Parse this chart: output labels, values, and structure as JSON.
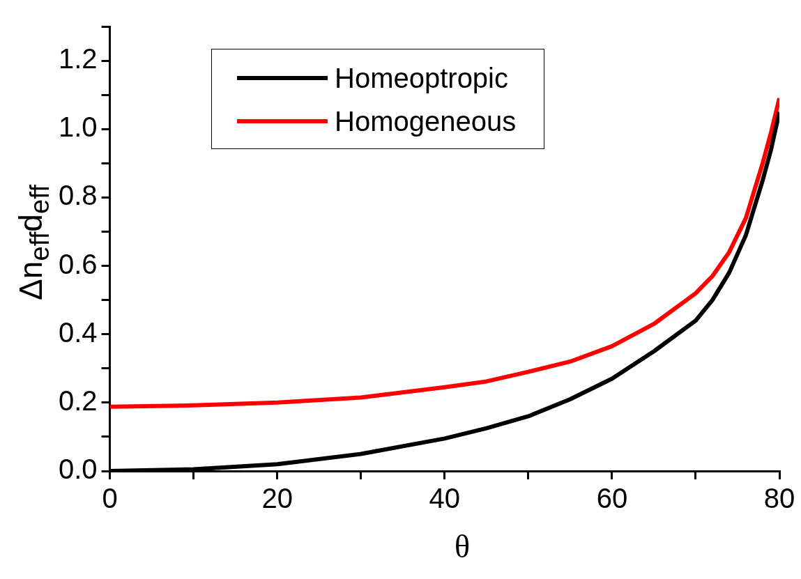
{
  "chart_data": {
    "type": "line",
    "xlabel": "θ",
    "ylabel": "Δn$_{eff}$d$_{eff}$",
    "x": [
      0,
      10,
      20,
      30,
      40,
      45,
      50,
      55,
      60,
      65,
      70,
      72,
      74,
      76,
      78,
      79,
      80
    ],
    "series": [
      {
        "name": "Homeoptropic",
        "color": "#000000",
        "values": [
          0,
          0.005,
          0.02,
          0.05,
          0.095,
          0.125,
          0.16,
          0.21,
          0.27,
          0.35,
          0.44,
          0.5,
          0.58,
          0.69,
          0.85,
          0.94,
          1.05
        ]
      },
      {
        "name": "Homogeneous",
        "color": "#ff0000",
        "values": [
          0.188,
          0.192,
          0.2,
          0.215,
          0.245,
          0.262,
          0.29,
          0.32,
          0.365,
          0.43,
          0.52,
          0.57,
          0.64,
          0.74,
          0.9,
          0.99,
          1.09
        ]
      }
    ],
    "xlim": [
      0,
      80
    ],
    "xticks": [
      0,
      {
        "value": 10,
        "label": null
      },
      20,
      {
        "value": 30,
        "label": null
      },
      40,
      {
        "value": 50,
        "label": null
      },
      60,
      {
        "value": 70,
        "label": null
      },
      80
    ],
    "ylim": [
      0,
      1.3
    ],
    "yticks": [
      "0.0",
      {
        "value": 0.1,
        "label": null
      },
      {
        "value": 0.2,
        "label": "0.2"
      },
      {
        "value": 0.3,
        "label": null
      },
      {
        "value": 0.4,
        "label": "0.4"
      },
      {
        "value": 0.5,
        "label": null
      },
      {
        "value": 0.6,
        "label": "0.6"
      },
      {
        "value": 0.7,
        "label": null
      },
      {
        "value": 0.8,
        "label": "0.8"
      },
      {
        "value": 0.9,
        "label": null
      },
      {
        "value": 1.0,
        "label": "1.0"
      },
      {
        "value": 1.1,
        "label": null
      },
      {
        "value": 1.2,
        "label": "1.2"
      },
      {
        "value": 1.3,
        "label": null
      }
    ],
    "grid": false,
    "legend": "top left"
  }
}
